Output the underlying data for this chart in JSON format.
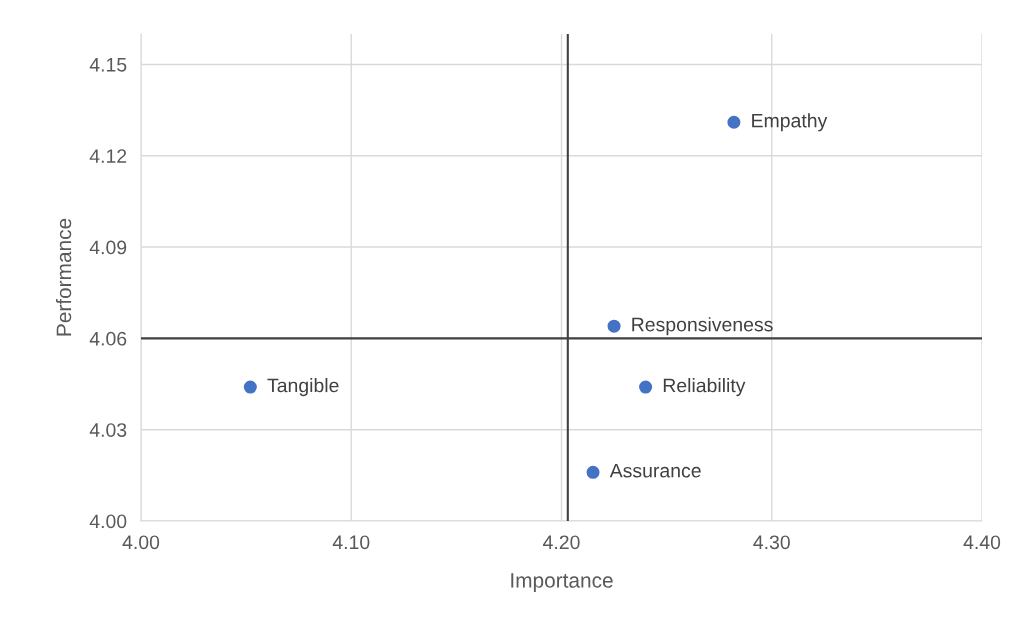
{
  "chart_data": {
    "type": "scatter",
    "xlabel": "Importance",
    "ylabel": "Performance",
    "x": [
      4.282,
      4.225,
      4.052,
      4.24,
      4.215
    ],
    "series": [
      {
        "color": "#4472c4",
        "values": [
          4.131,
          4.064,
          4.044,
          4.044,
          4.016
        ]
      }
    ],
    "annotations": [
      {
        "text": "Empathy",
        "x": 4.282,
        "y": 4.131
      },
      {
        "text": "Responsiveness",
        "x": 4.225,
        "y": 4.064
      },
      {
        "text": "Tangible",
        "x": 4.052,
        "y": 4.044
      },
      {
        "text": "Reliability",
        "x": 4.24,
        "y": 4.044
      },
      {
        "text": "Assurance",
        "x": 4.215,
        "y": 4.016
      }
    ],
    "ref_lines": [
      {
        "axis": "x",
        "value": 4.203,
        "color": "#404040"
      },
      {
        "axis": "y",
        "value": 4.06,
        "color": "#404040"
      }
    ],
    "xlim": [
      4.0,
      4.4
    ],
    "xticks": [
      {
        "value": 4.0,
        "label": "4.00"
      },
      {
        "value": 4.1,
        "label": "4.10"
      },
      {
        "value": 4.2,
        "label": "4.20"
      },
      {
        "value": 4.3,
        "label": "4.30"
      },
      {
        "value": 4.4,
        "label": "4.40"
      }
    ],
    "ylim": [
      4.0,
      4.16
    ],
    "yticks": [
      {
        "value": 4.0,
        "label": "4.00"
      },
      {
        "value": 4.03,
        "label": "4.03"
      },
      {
        "value": 4.06,
        "label": "4.06"
      },
      {
        "value": 4.09,
        "label": "4.09"
      },
      {
        "value": 4.12,
        "label": "4.12"
      },
      {
        "value": 4.15,
        "label": "4.15"
      }
    ],
    "grid": true,
    "marker": "circle",
    "legend": false
  }
}
